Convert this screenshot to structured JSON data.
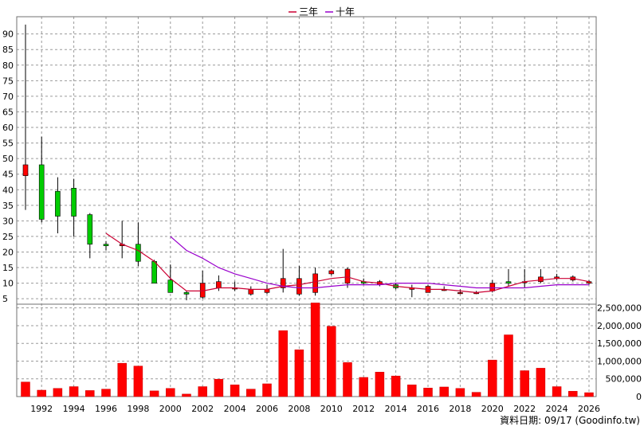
{
  "chart_data": {
    "type": "candlestick_with_volume",
    "legend": [
      {
        "label": "三年",
        "color": "#cc0033"
      },
      {
        "label": "十年",
        "color": "#9900cc"
      }
    ],
    "price_axis": {
      "ticks": [
        5,
        10,
        15,
        20,
        25,
        30,
        35,
        40,
        45,
        50,
        55,
        60,
        65,
        70,
        75,
        80,
        85,
        90
      ],
      "range": [
        3,
        94
      ],
      "side": "left",
      "grid": true
    },
    "volume_axis": {
      "ticks": [
        "0",
        "500,000",
        "1,000,000",
        "1,500,000",
        "2,000,000",
        "2,500,000"
      ],
      "tick_values": [
        0,
        500000,
        1000000,
        1500000,
        2000000,
        2500000
      ],
      "range": [
        0,
        2650000
      ],
      "side": "right"
    },
    "x_axis": {
      "ticks": [
        "1992",
        "1994",
        "1996",
        "1998",
        "2000",
        "2002",
        "2004",
        "2006",
        "2008",
        "2010",
        "2012",
        "2014",
        "2016",
        "2018",
        "2020",
        "2022",
        "2024",
        "2026"
      ]
    },
    "years": [
      1991,
      1992,
      1993,
      1994,
      1995,
      1996,
      1997,
      1998,
      1999,
      2000,
      2001,
      2002,
      2003,
      2004,
      2005,
      2006,
      2007,
      2008,
      2009,
      2010,
      2011,
      2012,
      2013,
      2014,
      2015,
      2016,
      2017,
      2018,
      2019,
      2020,
      2021,
      2022,
      2023,
      2024,
      2025,
      2026
    ],
    "candles": {
      "open": [
        44.5,
        48,
        39.5,
        40.5,
        32,
        22.5,
        22,
        22.5,
        17,
        11,
        7,
        5.5,
        8.5,
        8.5,
        6.5,
        7,
        8.5,
        6.5,
        7,
        13,
        10,
        10.5,
        9.5,
        9.5,
        8,
        7,
        8,
        7,
        7,
        7.5,
        10.5,
        10.5,
        10.5,
        11.5,
        11,
        10
      ],
      "close": [
        48,
        30.5,
        31.5,
        31.5,
        22.5,
        22,
        22.5,
        17,
        10,
        7,
        6.5,
        10,
        10.5,
        8.5,
        8,
        8,
        11.5,
        11.5,
        13,
        14,
        14.5,
        10,
        10.5,
        8.5,
        8.5,
        9,
        8,
        7,
        7,
        10,
        10,
        10.5,
        12,
        12,
        12,
        10.5
      ],
      "high": [
        93,
        57,
        44,
        43.5,
        32.5,
        23.5,
        30,
        29.5,
        17.5,
        16,
        7.5,
        14,
        12.5,
        10.5,
        9,
        9.5,
        21,
        15.5,
        15,
        14.5,
        15,
        11.5,
        11,
        10,
        9.5,
        9.5,
        9,
        8,
        7.5,
        11,
        14.5,
        14.5,
        14.5,
        13,
        12.5,
        11
      ],
      "low": [
        33.5,
        29.5,
        26,
        25,
        18,
        20.5,
        18,
        15.5,
        10,
        7,
        4.5,
        5,
        7.5,
        7.5,
        6,
        6.5,
        7,
        6,
        6,
        12.5,
        8.5,
        9.5,
        9,
        8,
        5.5,
        7,
        7.5,
        6.5,
        6.5,
        7,
        9,
        8.5,
        10,
        11,
        10.5,
        9.5
      ]
    },
    "series": [
      {
        "name": "三年",
        "x": [
          1996,
          1997,
          1998,
          1999,
          2000,
          2001,
          2002,
          2003,
          2004,
          2005,
          2006,
          2007,
          2008,
          2009,
          2010,
          2011,
          2012,
          2013,
          2014,
          2015,
          2016,
          2017,
          2018,
          2019,
          2020,
          2021,
          2022,
          2023,
          2024,
          2025,
          2026
        ],
        "values": [
          26,
          22.5,
          20.5,
          17,
          11.5,
          7.5,
          7.5,
          8.5,
          8.5,
          8,
          8,
          9,
          9.5,
          10.5,
          11.5,
          12,
          10.5,
          10,
          9,
          8.5,
          8,
          8,
          7.5,
          7,
          7.5,
          9,
          10.5,
          11,
          11.5,
          11.5,
          10.5
        ]
      },
      {
        "name": "十年",
        "x": [
          2000,
          2001,
          2002,
          2003,
          2004,
          2005,
          2006,
          2007,
          2008,
          2009,
          2010,
          2011,
          2012,
          2013,
          2014,
          2015,
          2016,
          2017,
          2018,
          2019,
          2020,
          2021,
          2022,
          2023,
          2024,
          2025,
          2026
        ],
        "values": [
          25,
          20.5,
          18,
          15,
          13,
          11.5,
          10,
          9,
          8.5,
          8.5,
          9,
          9.5,
          9.5,
          9.5,
          10,
          10,
          10,
          9.5,
          9,
          8.5,
          8.5,
          8.5,
          8.5,
          9,
          9.5,
          9.5,
          9.5
        ]
      }
    ],
    "volume": [
      410000,
      180000,
      230000,
      280000,
      170000,
      210000,
      940000,
      860000,
      160000,
      230000,
      70000,
      280000,
      490000,
      330000,
      210000,
      360000,
      1860000,
      1320000,
      2640000,
      1980000,
      960000,
      540000,
      690000,
      580000,
      330000,
      240000,
      270000,
      230000,
      120000,
      1030000,
      1740000,
      730000,
      800000,
      280000,
      150000,
      110000
    ],
    "credit": "資料日期: 09/17  (Goodinfo.tw)"
  }
}
